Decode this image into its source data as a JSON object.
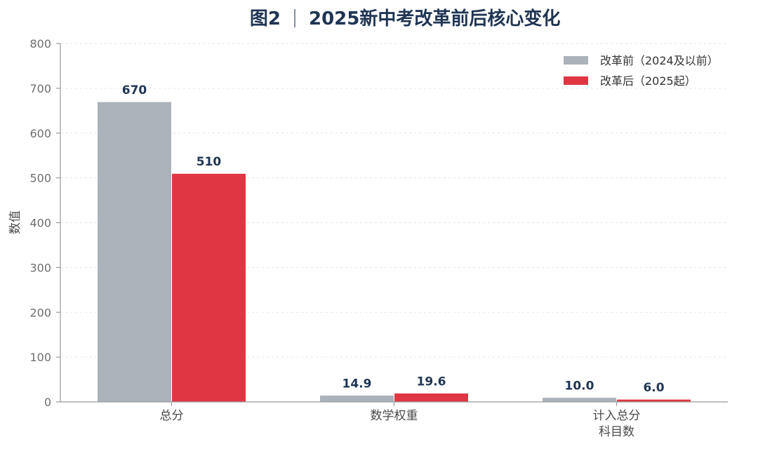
{
  "chart_data": {
    "type": "bar",
    "title_prefix": "图2",
    "title_main": "2025新中考改革前后核心变化",
    "ylabel": "数值",
    "xlabel": "",
    "ylim": [
      0,
      800
    ],
    "yticks": [
      0,
      100,
      200,
      300,
      400,
      500,
      600,
      700,
      800
    ],
    "grid": true,
    "legend_position": "top-right",
    "categories": [
      [
        "总分"
      ],
      [
        "数学权重"
      ],
      [
        "计入总分",
        "科目数"
      ]
    ],
    "series": [
      {
        "name": "改革前（2024及以前）",
        "color": "#abb2ba",
        "values": [
          670,
          14.9,
          10.0
        ],
        "labels": [
          "670",
          "14.9",
          "10.0"
        ]
      },
      {
        "name": "改革后（2025起）",
        "color": "#e03644",
        "values": [
          510,
          19.6,
          6.0
        ],
        "labels": [
          "510",
          "19.6",
          "6.0"
        ]
      }
    ]
  }
}
